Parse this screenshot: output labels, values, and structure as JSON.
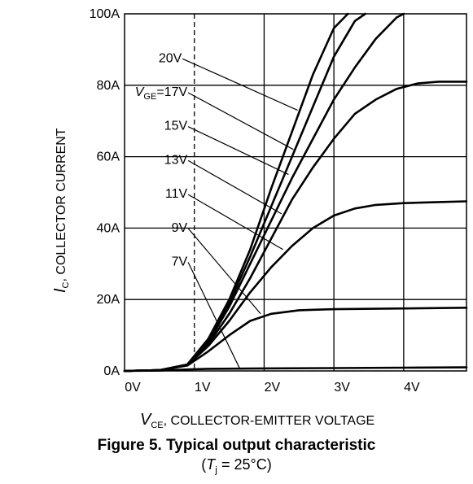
{
  "chart_data": {
    "type": "line",
    "xaxis": {
      "symbol": "V",
      "subscript": "CE",
      "text": ", COLLECTOR-EMITTER VOLTAGE",
      "ticks": [
        "0V",
        "1V",
        "2V",
        "3V",
        "4V"
      ],
      "range": [
        0,
        4.9
      ]
    },
    "yaxis": {
      "symbol": "I",
      "subscript": "C",
      "text": ", COLLECTOR CURRENT",
      "ticks": [
        "0A",
        "20A",
        "40A",
        "60A",
        "80A",
        "100A"
      ],
      "range": [
        0,
        100
      ]
    },
    "grid": true,
    "series": [
      {
        "name": "20V",
        "x": [
          0,
          0.5,
          0.9,
          1.2,
          1.5,
          1.8,
          2.1,
          2.4,
          2.7,
          3.0,
          3.2
        ],
        "y": [
          0,
          0.2,
          1.8,
          9,
          20,
          34,
          51,
          67,
          83,
          96,
          100
        ]
      },
      {
        "name": "17V",
        "x": [
          0,
          0.5,
          0.9,
          1.2,
          1.5,
          1.8,
          2.1,
          2.4,
          2.7,
          3.0,
          3.3,
          3.45
        ],
        "y": [
          0,
          0.2,
          1.8,
          8.5,
          19,
          32,
          46,
          60,
          74,
          88,
          98,
          100
        ]
      },
      {
        "name": "15V",
        "x": [
          0,
          0.5,
          0.9,
          1.2,
          1.5,
          1.8,
          2.1,
          2.4,
          2.7,
          3.0,
          3.3,
          3.6,
          3.9,
          4.0
        ],
        "y": [
          0,
          0.2,
          1.8,
          8,
          18,
          30,
          42,
          54,
          65,
          76,
          85,
          93,
          99,
          100
        ]
      },
      {
        "name": "13V",
        "x": [
          0,
          0.5,
          0.9,
          1.2,
          1.5,
          1.8,
          2.1,
          2.4,
          2.7,
          3.0,
          3.3,
          3.6,
          3.9,
          4.2,
          4.5,
          4.9
        ],
        "y": [
          0,
          0.2,
          1.7,
          7.5,
          16,
          26,
          37,
          48,
          57,
          65,
          72,
          76,
          79,
          80.5,
          81,
          81
        ]
      },
      {
        "name": "11V",
        "x": [
          0,
          0.5,
          0.9,
          1.2,
          1.5,
          1.8,
          2.1,
          2.4,
          2.7,
          3.0,
          3.3,
          3.6,
          4.0,
          4.5,
          4.9
        ],
        "y": [
          0,
          0.2,
          1.6,
          7,
          14,
          22,
          29,
          35,
          40,
          43.5,
          45.5,
          46.5,
          47,
          47.3,
          47.5
        ]
      },
      {
        "name": "9V",
        "x": [
          0,
          0.5,
          0.9,
          1.2,
          1.5,
          1.8,
          2.1,
          2.5,
          3.0,
          4.0,
          4.9
        ],
        "y": [
          0,
          0.2,
          1.5,
          5.5,
          10,
          14,
          16,
          17,
          17.3,
          17.5,
          17.7
        ]
      },
      {
        "name": "7V",
        "x": [
          0,
          0.5,
          0.9,
          1.2,
          2.0,
          3.0,
          4.0,
          4.9
        ],
        "y": [
          0,
          0.1,
          0.4,
          0.6,
          0.7,
          0.8,
          0.9,
          1.0
        ]
      }
    ],
    "annotations": [
      {
        "text": "20V",
        "label_at": [
          0.82,
          86.5
        ],
        "pointer_to": [
          2.48,
          73
        ]
      },
      {
        "prefix": "V",
        "prefix_sub": "GE",
        "text": "=17V",
        "label_at": [
          0.9,
          77
        ],
        "pointer_to": [
          2.42,
          62
        ]
      },
      {
        "text": "15V",
        "label_at": [
          0.9,
          67.5
        ],
        "pointer_to": [
          2.35,
          55
        ]
      },
      {
        "text": "13V",
        "label_at": [
          0.9,
          58
        ],
        "pointer_to": [
          2.25,
          44
        ]
      },
      {
        "text": "11V",
        "label_at": [
          0.9,
          48.5
        ],
        "pointer_to": [
          2.27,
          34
        ]
      },
      {
        "text": "9V",
        "label_at": [
          0.9,
          39
        ],
        "pointer_to": [
          1.95,
          16
        ]
      },
      {
        "text": "7V",
        "label_at": [
          0.9,
          29.5
        ],
        "pointer_to": [
          1.65,
          0.7
        ]
      }
    ]
  },
  "caption": {
    "title": "Figure 5.   Typical output characteristic",
    "condition_prefix": "(",
    "condition_symbol": "T",
    "condition_sub": "j",
    "condition_rest": " = 25°C)"
  }
}
